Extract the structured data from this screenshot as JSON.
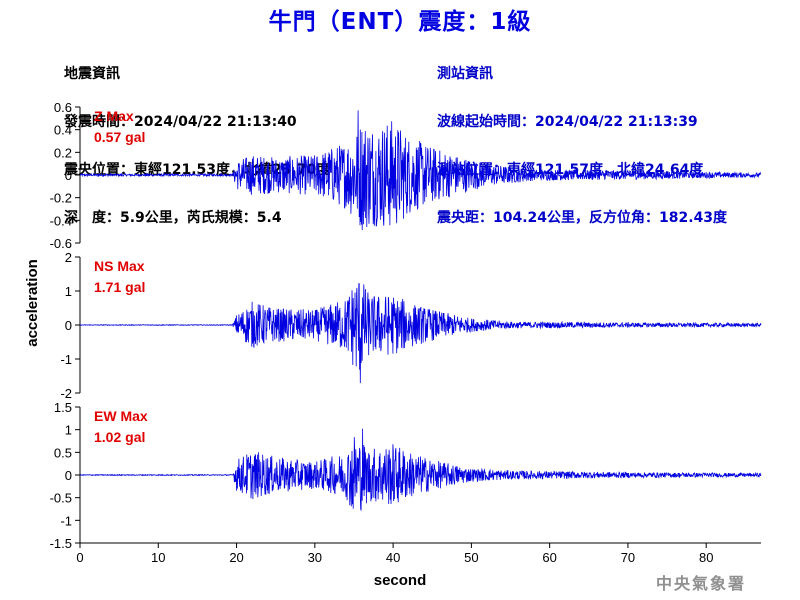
{
  "title": "牛門（ENT）震度：1級",
  "event_info": {
    "heading": "地震資訊",
    "origin_time": "發震時間：2024/04/22 21:13:40",
    "epicenter": "震央位置：東經121.53度，北緯23.70度",
    "depth_magnitude": "深　度：5.9公里，芮氏規模：5.4"
  },
  "station_info": {
    "heading": "測站資訊",
    "wave_start": "波線起始時間：2024/04/22 21:13:39",
    "station_location": "測站位置：東經121.57度，北緯24.64度",
    "distance_azimuth": "震央距：104.24公里，反方位角：182.43度"
  },
  "agency": "中央氣象署",
  "chart_data": {
    "type": "line",
    "xlabel": "second",
    "ylabel": "acceleration",
    "xlim": [
      0,
      87
    ],
    "x_ticks": [
      "0",
      "10",
      "20",
      "30",
      "40",
      "50",
      "60",
      "70",
      "80"
    ],
    "line_color": "#0000e0",
    "label_color": "#e00000",
    "grid": false,
    "panels": [
      {
        "component": "Z",
        "label_line1": "Z Max",
        "label_line2": "0.57 gal",
        "peak": 0.57,
        "ylim": [
          -0.6,
          0.6
        ],
        "y_ticks": [
          "0.6",
          "0.4",
          "0.2",
          "0",
          "-0.2",
          "-0.4",
          "-0.6"
        ],
        "envelope": [
          [
            0,
            0.01
          ],
          [
            19.5,
            0.01
          ],
          [
            20,
            0.13
          ],
          [
            22,
            0.18
          ],
          [
            25,
            0.16
          ],
          [
            30,
            0.18
          ],
          [
            34,
            0.3
          ],
          [
            36,
            0.5
          ],
          [
            38,
            0.45
          ],
          [
            40,
            0.5
          ],
          [
            42,
            0.35
          ],
          [
            45,
            0.25
          ],
          [
            48,
            0.18
          ],
          [
            52,
            0.1
          ],
          [
            58,
            0.05
          ],
          [
            70,
            0.04
          ],
          [
            87,
            0.02
          ]
        ]
      },
      {
        "component": "NS",
        "label_line1": "NS Max",
        "label_line2": "1.71 gal",
        "peak": 1.71,
        "ylim": [
          -2,
          2
        ],
        "y_ticks": [
          "2",
          "1",
          "0",
          "-1",
          "-2"
        ],
        "envelope": [
          [
            0,
            0.01
          ],
          [
            19.5,
            0.01
          ],
          [
            20,
            0.3
          ],
          [
            22,
            0.7
          ],
          [
            25,
            0.5
          ],
          [
            30,
            0.45
          ],
          [
            34,
            0.8
          ],
          [
            35.5,
            1.6
          ],
          [
            37,
            0.9
          ],
          [
            40,
            0.9
          ],
          [
            43,
            0.6
          ],
          [
            46,
            0.4
          ],
          [
            50,
            0.2
          ],
          [
            55,
            0.1
          ],
          [
            70,
            0.07
          ],
          [
            87,
            0.05
          ]
        ]
      },
      {
        "component": "EW",
        "label_line1": "EW Max",
        "label_line2": "1.02 gal",
        "peak": 1.02,
        "ylim": [
          -1.5,
          1.5
        ],
        "y_ticks": [
          "1.5",
          "1",
          "0.5",
          "0",
          "-0.5",
          "-1",
          "-1.5"
        ],
        "envelope": [
          [
            0,
            0.01
          ],
          [
            19.5,
            0.01
          ],
          [
            20,
            0.35
          ],
          [
            22,
            0.55
          ],
          [
            25,
            0.4
          ],
          [
            30,
            0.3
          ],
          [
            34,
            0.5
          ],
          [
            35,
            0.95
          ],
          [
            37,
            0.6
          ],
          [
            40,
            0.7
          ],
          [
            43,
            0.45
          ],
          [
            46,
            0.3
          ],
          [
            50,
            0.15
          ],
          [
            55,
            0.1
          ],
          [
            70,
            0.06
          ],
          [
            87,
            0.04
          ]
        ]
      }
    ]
  }
}
